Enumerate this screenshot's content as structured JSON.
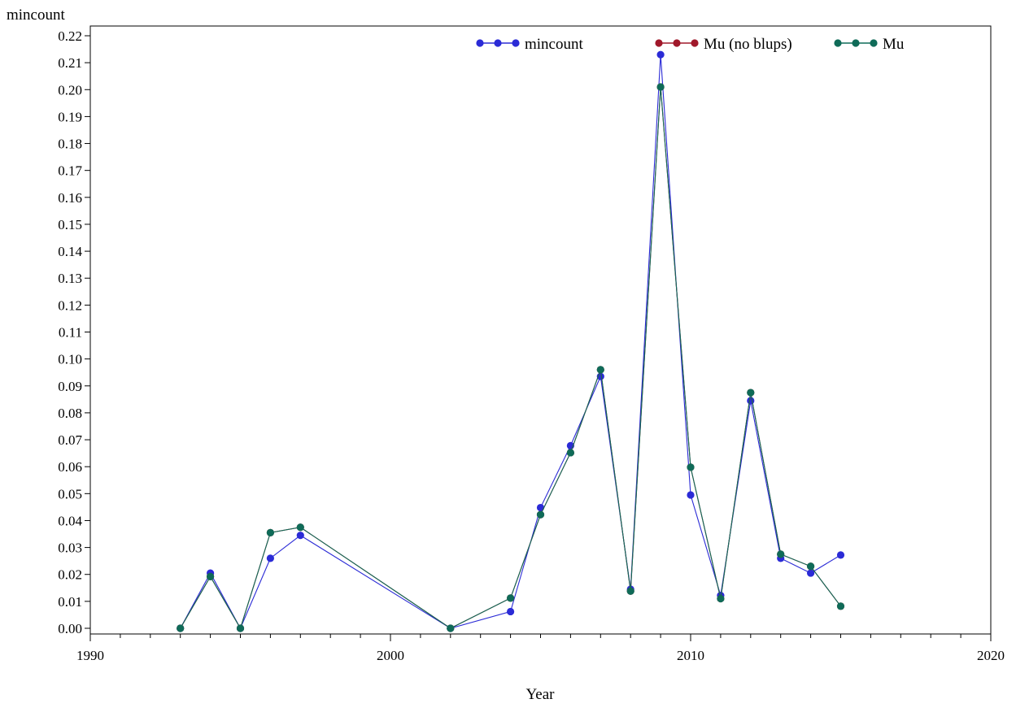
{
  "chart_data": {
    "type": "line",
    "title": "",
    "xlabel": "Year",
    "ylabel": "mincount",
    "xlim": [
      1990,
      2020
    ],
    "ylim": [
      0,
      0.22
    ],
    "x_major_ticks": [
      1990,
      2000,
      2010,
      2020
    ],
    "x_tick_labels": [
      "1990",
      "2000",
      "2010",
      "2020"
    ],
    "x_minor_step": 1,
    "y_ticks": [
      0.0,
      0.01,
      0.02,
      0.03,
      0.04,
      0.05,
      0.06,
      0.07,
      0.08,
      0.09,
      0.1,
      0.11,
      0.12,
      0.13,
      0.14,
      0.15,
      0.16,
      0.17,
      0.18,
      0.19,
      0.2,
      0.21,
      0.22
    ],
    "y_tick_labels": [
      "0.00",
      "0.01",
      "0.02",
      "0.03",
      "0.04",
      "0.05",
      "0.06",
      "0.07",
      "0.08",
      "0.09",
      "0.10",
      "0.11",
      "0.12",
      "0.13",
      "0.14",
      "0.15",
      "0.16",
      "0.17",
      "0.18",
      "0.19",
      "0.20",
      "0.21",
      "0.22"
    ],
    "grid": false,
    "legend_position": "top",
    "series": [
      {
        "name": "mincount",
        "color": "#2b2bd6",
        "x": [
          1993,
          1994,
          1995,
          1996,
          1997,
          2002,
          2004,
          2005,
          2006,
          2007,
          2008,
          2009,
          2010,
          2011,
          2012,
          2013,
          2014,
          2015
        ],
        "values": [
          0.0,
          0.0205,
          0.0,
          0.026,
          0.0345,
          0.0,
          0.0062,
          0.0448,
          0.0678,
          0.0935,
          0.0145,
          0.213,
          0.0495,
          0.0122,
          0.0845,
          0.026,
          0.0205,
          0.0272
        ]
      },
      {
        "name": "Mu (no blups)",
        "color": "#a0182a",
        "x": [
          1993,
          1994,
          1995,
          1996,
          1997,
          2002,
          2004,
          2005,
          2006,
          2007,
          2008,
          2009,
          2010,
          2011,
          2012,
          2013,
          2014,
          2015
        ],
        "values": [
          0.0,
          0.0192,
          0.0,
          0.0355,
          0.0375,
          0.0,
          0.0112,
          0.0422,
          0.0652,
          0.096,
          0.0138,
          0.201,
          0.0598,
          0.011,
          0.0875,
          0.0275,
          0.023,
          0.0082
        ]
      },
      {
        "name": "Mu",
        "color": "#0f6b58",
        "x": [
          1993,
          1994,
          1995,
          1996,
          1997,
          2002,
          2004,
          2005,
          2006,
          2007,
          2008,
          2009,
          2010,
          2011,
          2012,
          2013,
          2014,
          2015
        ],
        "values": [
          0.0,
          0.0192,
          0.0,
          0.0355,
          0.0375,
          0.0,
          0.0112,
          0.0422,
          0.0652,
          0.096,
          0.0138,
          0.201,
          0.0598,
          0.011,
          0.0875,
          0.0275,
          0.023,
          0.0082
        ]
      }
    ]
  }
}
